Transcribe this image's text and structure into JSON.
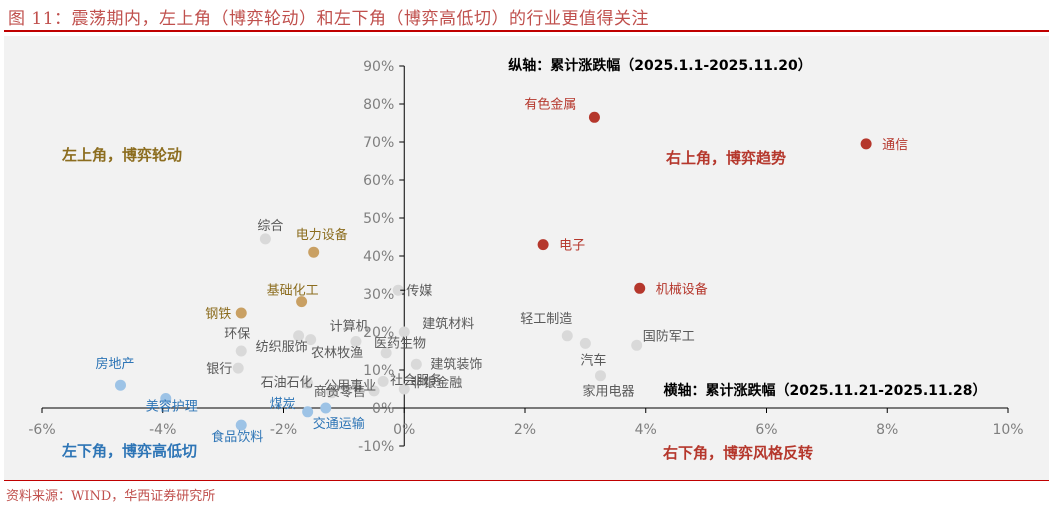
{
  "figure": {
    "title": "图 11：震荡期内，左上角（博弈轮动）和左下角（博弈高低切）的行业更值得关注",
    "source": "资料来源：WIND，华西证券研究所"
  },
  "chart_data": {
    "type": "scatter",
    "title": "",
    "ylabel": "纵轴：累计涨跌幅（2025.1.1-2025.11.20）",
    "xlabel": "横轴：累计涨跌幅（2025.11.21-2025.11.28）",
    "xlim": [
      -6,
      10
    ],
    "ylim": [
      -10,
      90
    ],
    "x_ticks": [
      "-6%",
      "-4%",
      "-2%",
      "0%",
      "2%",
      "4%",
      "6%",
      "8%",
      "10%"
    ],
    "y_ticks": [
      "-10%",
      "0%",
      "10%",
      "20%",
      "30%",
      "40%",
      "50%",
      "60%",
      "70%",
      "80%",
      "90%"
    ],
    "grid": false,
    "quadrant_labels": {
      "top_left": "左上角，博弈轮动",
      "top_right": "右上角，博弈趋势",
      "bottom_left": "左下角，博弈高低切",
      "bottom_right": "右下角，博弈风格反转"
    },
    "colors": {
      "red": "#b5372c",
      "gold": "#c9a063",
      "gold_text": "#8c6d1f",
      "blue": "#9dc3e6",
      "blue_text": "#2e75b6",
      "grey": "#d9d9d9",
      "grey_text": "#595959"
    },
    "points": [
      {
        "name": "通信",
        "x": 7.65,
        "y": 69.5,
        "group": "red"
      },
      {
        "name": "有色金属",
        "x": 3.15,
        "y": 76.5,
        "group": "red"
      },
      {
        "name": "电子",
        "x": 2.3,
        "y": 43.0,
        "group": "red"
      },
      {
        "name": "机械设备",
        "x": 3.9,
        "y": 31.5,
        "group": "red"
      },
      {
        "name": "电力设备",
        "x": -1.5,
        "y": 41.0,
        "group": "gold"
      },
      {
        "name": "基础化工",
        "x": -1.7,
        "y": 28.0,
        "group": "gold"
      },
      {
        "name": "钢铁",
        "x": -2.7,
        "y": 25.0,
        "group": "gold"
      },
      {
        "name": "房地产",
        "x": -4.7,
        "y": 6.0,
        "group": "blue"
      },
      {
        "name": "美容护理",
        "x": -3.95,
        "y": 2.5,
        "group": "blue"
      },
      {
        "name": "食品饮料",
        "x": -2.7,
        "y": -4.5,
        "group": "blue"
      },
      {
        "name": "煤炭",
        "x": -1.6,
        "y": -1.0,
        "group": "blue"
      },
      {
        "name": "交通运输",
        "x": -1.3,
        "y": 0.0,
        "group": "blue"
      },
      {
        "name": "综合",
        "x": -2.3,
        "y": 44.5,
        "group": "grey"
      },
      {
        "name": "传媒",
        "x": -0.1,
        "y": 31.0,
        "group": "grey"
      },
      {
        "name": "计算机",
        "x": -1.55,
        "y": 18.0,
        "group": "grey"
      },
      {
        "name": "建筑材料",
        "x": 0.0,
        "y": 20.0,
        "group": "grey"
      },
      {
        "name": "医药生物",
        "x": -0.8,
        "y": 17.5,
        "group": "grey"
      },
      {
        "name": "农林牧渔",
        "x": -0.3,
        "y": 14.5,
        "group": "grey"
      },
      {
        "name": "环保",
        "x": -2.7,
        "y": 15.0,
        "group": "grey"
      },
      {
        "name": "纺织服饰",
        "x": -1.75,
        "y": 19.0,
        "group": "grey"
      },
      {
        "name": "银行",
        "x": -2.75,
        "y": 10.5,
        "group": "grey"
      },
      {
        "name": "建筑装饰",
        "x": 0.2,
        "y": 11.5,
        "group": "grey"
      },
      {
        "name": "石油石化",
        "x": -1.6,
        "y": 6.5,
        "group": "grey"
      },
      {
        "name": "商贸零售",
        "x": -1.2,
        "y": 4.0,
        "group": "grey"
      },
      {
        "name": "社会服务",
        "x": -0.35,
        "y": 7.0,
        "group": "grey"
      },
      {
        "name": "公用事业",
        "x": -0.5,
        "y": 4.5,
        "group": "grey"
      },
      {
        "name": "非银金融",
        "x": 0.0,
        "y": 5.0,
        "group": "grey"
      },
      {
        "name": "轻工制造",
        "x": 2.7,
        "y": 19.0,
        "group": "grey"
      },
      {
        "name": "汽车",
        "x": 3.0,
        "y": 17.0,
        "group": "grey"
      },
      {
        "name": "国防军工",
        "x": 3.85,
        "y": 16.5,
        "group": "grey"
      },
      {
        "name": "家用电器",
        "x": 3.25,
        "y": 8.5,
        "group": "grey"
      }
    ]
  }
}
